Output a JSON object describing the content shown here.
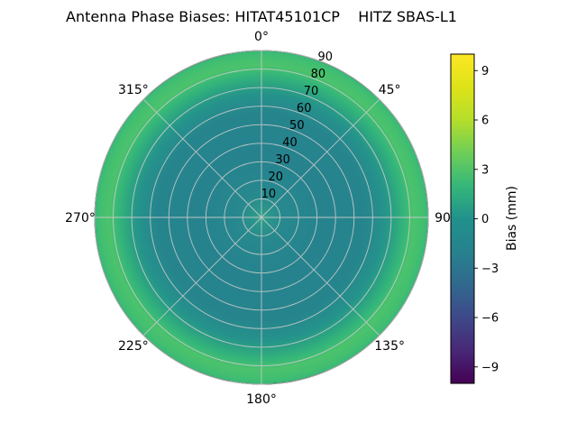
{
  "figure": {
    "background": "#ffffff"
  },
  "chart_data": {
    "type": "heatmap",
    "projection": "polar",
    "title": "Antenna Phase Biases: HITAT45101CP    HITZ SBAS-L1",
    "grid": true,
    "grid_color": "#cdcdcd",
    "r_max": 90,
    "radial_ticks": [
      10,
      20,
      30,
      40,
      50,
      60,
      70,
      80,
      90
    ],
    "radial_tick_angle_deg": 22.5,
    "angular_ticks": [
      {
        "angle": 0,
        "label": "0°"
      },
      {
        "angle": 45,
        "label": "45°"
      },
      {
        "angle": 90,
        "label": "90"
      },
      {
        "angle": 135,
        "label": "135°"
      },
      {
        "angle": 180,
        "label": "180°"
      },
      {
        "angle": 225,
        "label": "225°"
      },
      {
        "angle": 270,
        "label": "270°"
      },
      {
        "angle": 315,
        "label": "315°"
      }
    ],
    "radial_profile": [
      {
        "r": 0,
        "bias_mm": 1.8
      },
      {
        "r": 5,
        "bias_mm": 1.4
      },
      {
        "r": 10,
        "bias_mm": 1.0
      },
      {
        "r": 20,
        "bias_mm": 0.8
      },
      {
        "r": 30,
        "bias_mm": 0.8
      },
      {
        "r": 40,
        "bias_mm": 0.8
      },
      {
        "r": 50,
        "bias_mm": 0.8
      },
      {
        "r": 60,
        "bias_mm": 0.9
      },
      {
        "r": 70,
        "bias_mm": 1.4
      },
      {
        "r": 75,
        "bias_mm": 2.2
      },
      {
        "r": 80,
        "bias_mm": 3.2
      },
      {
        "r": 85,
        "bias_mm": 4.3
      },
      {
        "r": 90,
        "bias_mm": 4.0
      }
    ],
    "surface_gradient": [
      {
        "r_frac": 0.0,
        "color": "#31a186"
      },
      {
        "r_frac": 0.06,
        "color": "#2a948b"
      },
      {
        "r_frac": 0.14,
        "color": "#27888e"
      },
      {
        "r_frac": 0.35,
        "color": "#26838e"
      },
      {
        "r_frac": 0.62,
        "color": "#26848d"
      },
      {
        "r_frac": 0.74,
        "color": "#25938b"
      },
      {
        "r_frac": 0.8,
        "color": "#2ca481"
      },
      {
        "r_frac": 0.86,
        "color": "#35b779"
      },
      {
        "r_frac": 0.91,
        "color": "#4cc26c"
      },
      {
        "r_frac": 0.96,
        "color": "#43bf70"
      },
      {
        "r_frac": 1.0,
        "color": "#38b977"
      }
    ],
    "colorbar": {
      "label": "Bias (mm)",
      "vmin": -10,
      "vmax": 10,
      "ticks": [
        9,
        6,
        3,
        0,
        -3,
        -6,
        -9
      ],
      "tick_labels": [
        "9",
        "6",
        "3",
        "0",
        "−3",
        "−6",
        "−9"
      ],
      "colormap": "viridis",
      "gradient_stops": [
        {
          "pos": 0.0,
          "color": "#440154"
        },
        {
          "pos": 0.1,
          "color": "#482878"
        },
        {
          "pos": 0.2,
          "color": "#3e4989"
        },
        {
          "pos": 0.3,
          "color": "#31688e"
        },
        {
          "pos": 0.4,
          "color": "#26828e"
        },
        {
          "pos": 0.5,
          "color": "#21918c"
        },
        {
          "pos": 0.6,
          "color": "#35b779"
        },
        {
          "pos": 0.7,
          "color": "#6ece58"
        },
        {
          "pos": 0.8,
          "color": "#b5de2b"
        },
        {
          "pos": 0.9,
          "color": "#dde318"
        },
        {
          "pos": 1.0,
          "color": "#fde725"
        }
      ]
    }
  }
}
